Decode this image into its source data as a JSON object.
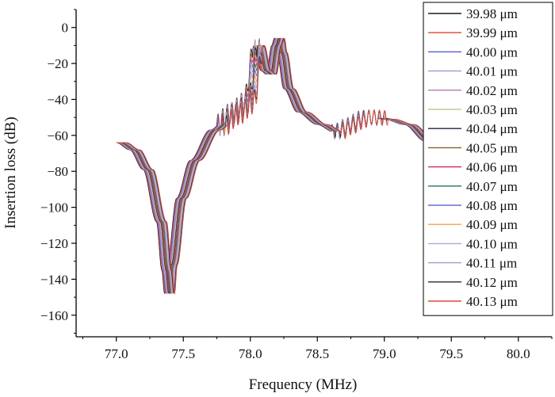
{
  "chart_data": {
    "type": "line",
    "title": "",
    "xlabel": "Frequency (MHz)",
    "ylabel": "Insertion loss (dB)",
    "xlim": [
      76.7,
      80.25
    ],
    "ylim": [
      -172,
      10
    ],
    "x_ticks": [
      77.0,
      77.5,
      78.0,
      78.5,
      79.0,
      79.5,
      80.0
    ],
    "x_tick_labels": [
      "77.0",
      "77.5",
      "78.0",
      "78.5",
      "79.0",
      "79.5",
      "80.0"
    ],
    "y_ticks": [
      0,
      -20,
      -40,
      -60,
      -80,
      -100,
      -120,
      -140,
      -160
    ],
    "y_tick_labels": [
      "0",
      "−20",
      "−40",
      "−60",
      "−80",
      "−100",
      "−120",
      "−140",
      "−160"
    ],
    "grid": false,
    "legend_position": "top-right",
    "envelope": {
      "x": [
        77.0,
        77.1,
        77.2,
        77.3,
        77.34,
        77.36,
        77.38,
        77.45,
        77.55,
        77.7,
        77.85,
        77.95,
        78.03,
        78.08,
        78.12,
        78.16,
        78.18,
        78.2,
        78.25,
        78.35,
        78.5,
        78.62,
        78.7,
        78.78,
        78.82,
        78.9,
        79.0,
        79.15,
        79.3,
        79.45,
        79.55
      ],
      "y": [
        -64,
        -68,
        -79,
        -108,
        -135,
        -148,
        -132,
        -95,
        -74,
        -57,
        -48,
        -42,
        -10,
        -24,
        -26,
        -10,
        -6,
        -14,
        -34,
        -47,
        -54,
        -58,
        -55,
        -52,
        -50,
        -50,
        -51,
        -54,
        -63,
        -78,
        -96
      ]
    },
    "series": [
      {
        "name": "39.98 μm",
        "color": "#1f1f1f",
        "shift_mhz": 0.0
      },
      {
        "name": "39.99 μm",
        "color": "#e0442e",
        "shift_mhz": 0.005
      },
      {
        "name": "40.00 μm",
        "color": "#5b5bd6",
        "shift_mhz": 0.01
      },
      {
        "name": "40.01 μm",
        "color": "#9a9ad8",
        "shift_mhz": 0.015
      },
      {
        "name": "40.02 μm",
        "color": "#b07bb0",
        "shift_mhz": 0.02
      },
      {
        "name": "40.03 μm",
        "color": "#c8c890",
        "shift_mhz": 0.025
      },
      {
        "name": "40.04 μm",
        "color": "#222244",
        "shift_mhz": 0.03
      },
      {
        "name": "40.05 μm",
        "color": "#8b5a2b",
        "shift_mhz": 0.035
      },
      {
        "name": "40.06 μm",
        "color": "#d6245a",
        "shift_mhz": 0.04
      },
      {
        "name": "40.07 μm",
        "color": "#1f7a4d",
        "shift_mhz": 0.045
      },
      {
        "name": "40.08 μm",
        "color": "#6a6ad0",
        "shift_mhz": 0.05
      },
      {
        "name": "40.09 μm",
        "color": "#f0a050",
        "shift_mhz": 0.055
      },
      {
        "name": "40.10 μm",
        "color": "#b8a0e0",
        "shift_mhz": 0.06
      },
      {
        "name": "40.11 μm",
        "color": "#9c9cd6",
        "shift_mhz": 0.065
      },
      {
        "name": "40.12 μm",
        "color": "#2b2b2b",
        "shift_mhz": 0.07
      },
      {
        "name": "40.13 μm",
        "color": "#e04a3a",
        "shift_mhz": 0.075
      }
    ]
  }
}
